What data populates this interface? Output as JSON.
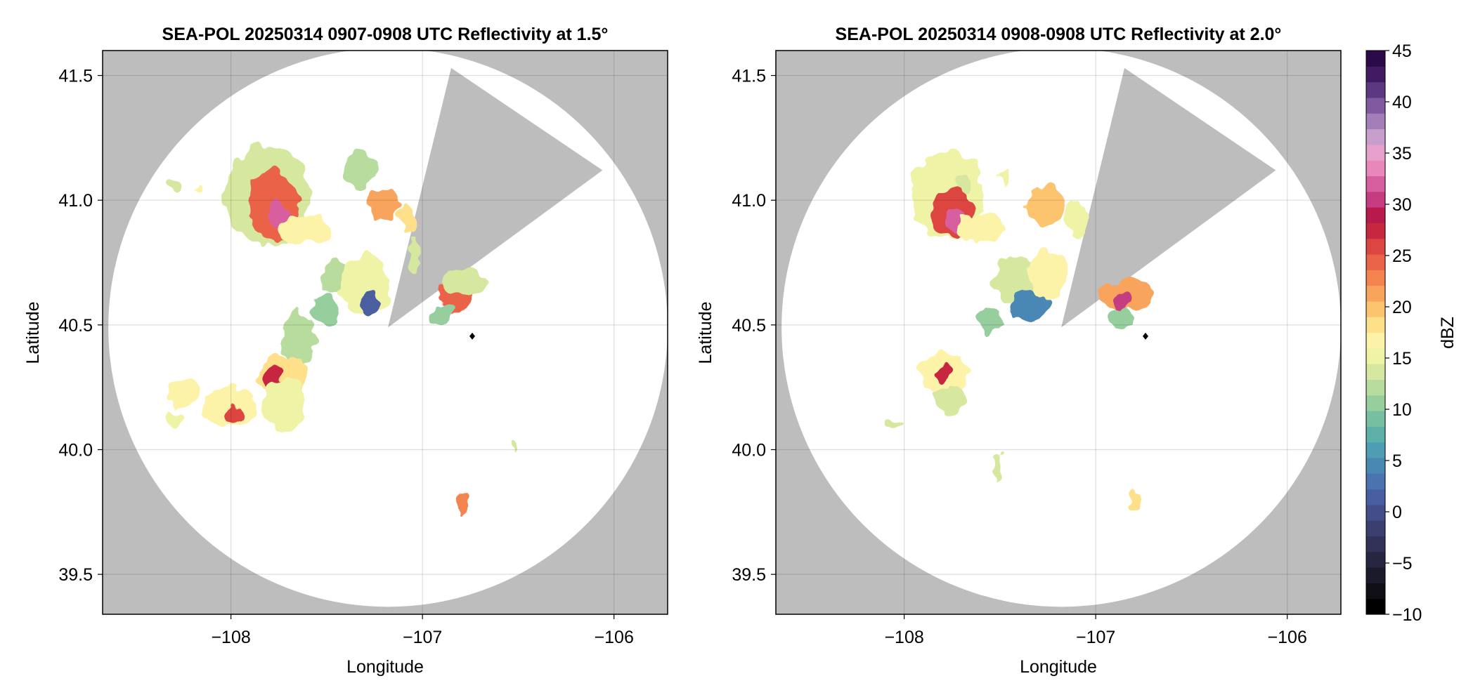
{
  "chart_data": [
    {
      "type": "heatmap",
      "title": "SEA-POL 20250314 0907-0908 UTC Reflectivity at 1.5°",
      "xlabel": "Longitude",
      "ylabel": "Latitude",
      "xlim": [
        -108.67,
        -105.72
      ],
      "ylim": [
        39.34,
        41.6
      ],
      "xticks": [
        -108,
        -107,
        -106
      ],
      "xtick_labels": [
        "−108",
        "−107",
        "−106"
      ],
      "yticks": [
        39.5,
        40.0,
        40.5,
        41.0,
        41.5
      ],
      "ytick_labels": [
        "39.5",
        "40.0",
        "40.5",
        "41.0",
        "41.5"
      ],
      "grid": true,
      "background_color": "#bdbdbd",
      "radar": {
        "center": [
          -107.18,
          40.49
        ],
        "radius_lat": 1.12,
        "sector_blocked": [
          [
            -107.18,
            40.49
          ],
          [
            -106.85,
            41.53
          ],
          [
            -106.06,
            41.12
          ]
        ]
      },
      "site_marker": [
        -106.74,
        40.455
      ],
      "echo_cells": [
        {
          "lon": -107.81,
          "lat": 41.02,
          "rx": 0.22,
          "ry": 0.2,
          "dbz": 14
        },
        {
          "lon": -107.78,
          "lat": 40.98,
          "rx": 0.13,
          "ry": 0.14,
          "dbz": 25
        },
        {
          "lon": -107.74,
          "lat": 40.93,
          "rx": 0.06,
          "ry": 0.06,
          "dbz": 32
        },
        {
          "lon": -107.62,
          "lat": 40.88,
          "rx": 0.14,
          "ry": 0.06,
          "dbz": 17
        },
        {
          "lon": -107.32,
          "lat": 41.12,
          "rx": 0.09,
          "ry": 0.08,
          "dbz": 12
        },
        {
          "lon": -107.2,
          "lat": 40.98,
          "rx": 0.09,
          "ry": 0.07,
          "dbz": 22
        },
        {
          "lon": -107.08,
          "lat": 40.93,
          "rx": 0.03,
          "ry": 0.06,
          "dbz": 19
        },
        {
          "lon": -107.45,
          "lat": 40.69,
          "rx": 0.08,
          "ry": 0.07,
          "dbz": 12
        },
        {
          "lon": -107.3,
          "lat": 40.66,
          "rx": 0.13,
          "ry": 0.12,
          "dbz": 15
        },
        {
          "lon": -107.52,
          "lat": 40.56,
          "rx": 0.07,
          "ry": 0.07,
          "dbz": 10
        },
        {
          "lon": -107.27,
          "lat": 40.58,
          "rx": 0.04,
          "ry": 0.05,
          "dbz": 2
        },
        {
          "lon": -107.65,
          "lat": 40.44,
          "rx": 0.09,
          "ry": 0.12,
          "dbz": 12
        },
        {
          "lon": -107.73,
          "lat": 40.3,
          "rx": 0.13,
          "ry": 0.08,
          "dbz": 18
        },
        {
          "lon": -107.78,
          "lat": 40.29,
          "rx": 0.05,
          "ry": 0.05,
          "dbz": 27
        },
        {
          "lon": -107.72,
          "lat": 40.18,
          "rx": 0.12,
          "ry": 0.1,
          "dbz": 15
        },
        {
          "lon": -108.0,
          "lat": 40.17,
          "rx": 0.14,
          "ry": 0.08,
          "dbz": 17
        },
        {
          "lon": -107.99,
          "lat": 40.14,
          "rx": 0.04,
          "ry": 0.04,
          "dbz": 26
        },
        {
          "lon": -108.25,
          "lat": 40.22,
          "rx": 0.09,
          "ry": 0.05,
          "dbz": 16
        },
        {
          "lon": -108.3,
          "lat": 40.12,
          "rx": 0.04,
          "ry": 0.04,
          "dbz": 15
        },
        {
          "lon": -106.83,
          "lat": 40.62,
          "rx": 0.09,
          "ry": 0.07,
          "dbz": 24
        },
        {
          "lon": -106.78,
          "lat": 40.67,
          "rx": 0.12,
          "ry": 0.05,
          "dbz": 14
        },
        {
          "lon": -106.89,
          "lat": 40.54,
          "rx": 0.05,
          "ry": 0.04,
          "dbz": 11
        },
        {
          "lon": -106.79,
          "lat": 39.79,
          "rx": 0.03,
          "ry": 0.04,
          "dbz": 23
        },
        {
          "lon": -106.52,
          "lat": 40.01,
          "rx": 0.02,
          "ry": 0.02,
          "dbz": 14
        },
        {
          "lon": -108.3,
          "lat": 41.07,
          "rx": 0.03,
          "ry": 0.02,
          "dbz": 14
        },
        {
          "lon": -108.17,
          "lat": 41.05,
          "rx": 0.02,
          "ry": 0.02,
          "dbz": 16
        },
        {
          "lon": -107.04,
          "lat": 40.78,
          "rx": 0.03,
          "ry": 0.07,
          "dbz": 14
        }
      ]
    },
    {
      "type": "heatmap",
      "title": "SEA-POL 20250314 0908-0908 UTC Reflectivity at 2.0°",
      "xlabel": "Longitude",
      "ylabel": "Latitude",
      "xlim": [
        -108.67,
        -105.72
      ],
      "ylim": [
        39.34,
        41.6
      ],
      "xticks": [
        -108,
        -107,
        -106
      ],
      "xtick_labels": [
        "−108",
        "−107",
        "−106"
      ],
      "yticks": [
        39.5,
        40.0,
        40.5,
        41.0,
        41.5
      ],
      "ytick_labels": [
        "39.5",
        "40.0",
        "40.5",
        "41.0",
        "41.5"
      ],
      "grid": true,
      "background_color": "#bdbdbd",
      "radar": {
        "center": [
          -107.18,
          40.49
        ],
        "radius_lat": 1.12,
        "sector_blocked": [
          [
            -107.18,
            40.49
          ],
          [
            -106.85,
            41.53
          ],
          [
            -106.06,
            41.12
          ]
        ]
      },
      "site_marker": [
        -106.74,
        40.455
      ],
      "echo_cells": [
        {
          "lon": -107.78,
          "lat": 41.02,
          "rx": 0.19,
          "ry": 0.18,
          "dbz": 15
        },
        {
          "lon": -107.75,
          "lat": 40.95,
          "rx": 0.11,
          "ry": 0.1,
          "dbz": 26
        },
        {
          "lon": -107.74,
          "lat": 40.92,
          "rx": 0.05,
          "ry": 0.04,
          "dbz": 32
        },
        {
          "lon": -107.6,
          "lat": 40.89,
          "rx": 0.13,
          "ry": 0.06,
          "dbz": 16
        },
        {
          "lon": -107.26,
          "lat": 40.98,
          "rx": 0.1,
          "ry": 0.08,
          "dbz": 20
        },
        {
          "lon": -107.1,
          "lat": 40.92,
          "rx": 0.06,
          "ry": 0.08,
          "dbz": 15
        },
        {
          "lon": -107.42,
          "lat": 40.69,
          "rx": 0.12,
          "ry": 0.09,
          "dbz": 13
        },
        {
          "lon": -107.25,
          "lat": 40.7,
          "rx": 0.1,
          "ry": 0.11,
          "dbz": 16
        },
        {
          "lon": -107.35,
          "lat": 40.58,
          "rx": 0.1,
          "ry": 0.06,
          "dbz": 4
        },
        {
          "lon": -107.55,
          "lat": 40.52,
          "rx": 0.06,
          "ry": 0.05,
          "dbz": 10
        },
        {
          "lon": -107.79,
          "lat": 40.3,
          "rx": 0.12,
          "ry": 0.09,
          "dbz": 16
        },
        {
          "lon": -107.8,
          "lat": 40.31,
          "rx": 0.04,
          "ry": 0.04,
          "dbz": 27
        },
        {
          "lon": -107.76,
          "lat": 40.2,
          "rx": 0.08,
          "ry": 0.05,
          "dbz": 13
        },
        {
          "lon": -108.06,
          "lat": 40.1,
          "rx": 0.06,
          "ry": 0.02,
          "dbz": 14
        },
        {
          "lon": -106.84,
          "lat": 40.62,
          "rx": 0.13,
          "ry": 0.07,
          "dbz": 22
        },
        {
          "lon": -106.86,
          "lat": 40.59,
          "rx": 0.05,
          "ry": 0.04,
          "dbz": 30
        },
        {
          "lon": -106.87,
          "lat": 40.52,
          "rx": 0.07,
          "ry": 0.04,
          "dbz": 11
        },
        {
          "lon": -107.52,
          "lat": 39.93,
          "rx": 0.03,
          "ry": 0.06,
          "dbz": 13
        },
        {
          "lon": -106.79,
          "lat": 39.8,
          "rx": 0.03,
          "ry": 0.04,
          "dbz": 19
        },
        {
          "lon": -107.68,
          "lat": 41.06,
          "rx": 0.04,
          "ry": 0.03,
          "dbz": 14
        },
        {
          "lon": -107.47,
          "lat": 41.08,
          "rx": 0.03,
          "ry": 0.04,
          "dbz": 15
        }
      ]
    }
  ],
  "colorbar": {
    "label": "dBZ",
    "min": -10,
    "max": 45,
    "tick_values": [
      -10,
      -5,
      0,
      5,
      10,
      15,
      20,
      25,
      30,
      35,
      40,
      45
    ],
    "tick_labels": [
      "−10",
      "−5",
      "0",
      "5",
      "10",
      "15",
      "20",
      "25",
      "30",
      "35",
      "40",
      "45"
    ],
    "colors": [
      "#000000",
      "#0e0e14",
      "#1b1a2a",
      "#272640",
      "#323258",
      "#3b3f70",
      "#434d89",
      "#495ea0",
      "#4a73b0",
      "#4a88b4",
      "#4e9db2",
      "#5cb0a8",
      "#76c0a1",
      "#97ce9e",
      "#b8dc9d",
      "#d6e89f",
      "#eff3a6",
      "#fdf3a8",
      "#fde089",
      "#fdc470",
      "#f9a45c",
      "#f38450",
      "#ea644a",
      "#dc4541",
      "#c8283f",
      "#b81a4b",
      "#c53c80",
      "#d85f9f",
      "#e887ba",
      "#e6a0cb",
      "#c89ecc",
      "#a37fb9",
      "#7f5aa0",
      "#5c3883",
      "#401a63",
      "#2c0a4a"
    ]
  }
}
